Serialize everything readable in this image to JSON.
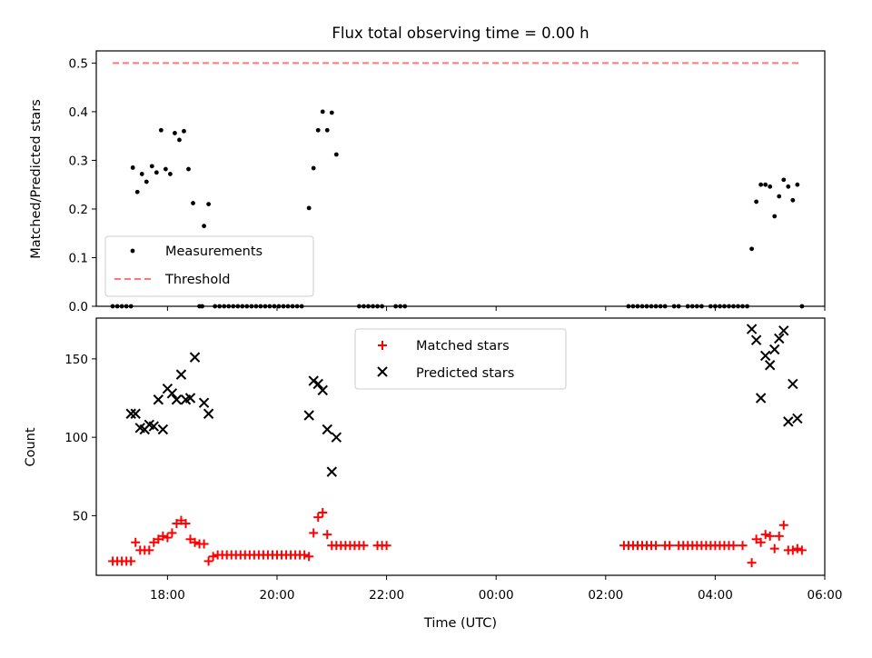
{
  "chart_data": [
    {
      "type": "scatter",
      "title": "Flux total observing time = 0.00 h",
      "ylabel": "Matched/Predicted stars",
      "xlabel": "",
      "x_axis": "time (hours since the day of the plot start, UTC)",
      "ylim": [
        0,
        0.525
      ],
      "yticks": [
        0.0,
        0.1,
        0.2,
        0.3,
        0.4,
        0.5
      ],
      "ytick_labels": [
        "0.0",
        "0.1",
        "0.2",
        "0.3",
        "0.4",
        "0.5"
      ],
      "legend": {
        "placement": "lower-left",
        "entries": [
          "Measurements",
          "Threshold"
        ]
      },
      "series": [
        {
          "name": "Measurements",
          "color": "#000000",
          "marker": "dot",
          "points": [
            [
              "17:22",
              0.285
            ],
            [
              "17:27",
              0.235
            ],
            [
              "17:32",
              0.272
            ],
            [
              "17:37",
              0.256
            ],
            [
              "17:43",
              0.288
            ],
            [
              "17:48",
              0.275
            ],
            [
              "17:53",
              0.362
            ],
            [
              "17:58",
              0.282
            ],
            [
              "18:03",
              0.272
            ],
            [
              "18:08",
              0.356
            ],
            [
              "18:13",
              0.342
            ],
            [
              "18:18",
              0.36
            ],
            [
              "18:23",
              0.282
            ],
            [
              "18:28",
              0.212
            ],
            [
              "18:40",
              0.165
            ],
            [
              "18:45",
              0.21
            ],
            [
              "20:35",
              0.202
            ],
            [
              "20:40",
              0.284
            ],
            [
              "20:45",
              0.362
            ],
            [
              "20:50",
              0.4
            ],
            [
              "20:55",
              0.362
            ],
            [
              "21:00",
              0.398
            ],
            [
              "21:05",
              0.312
            ],
            [
              "04:40",
              0.118
            ],
            [
              "04:45",
              0.215
            ],
            [
              "04:50",
              0.25
            ],
            [
              "04:55",
              0.25
            ],
            [
              "05:00",
              0.246
            ],
            [
              "05:05",
              0.185
            ],
            [
              "05:10",
              0.226
            ],
            [
              "05:15",
              0.26
            ],
            [
              "05:20",
              0.246
            ],
            [
              "05:25",
              0.218
            ],
            [
              "05:30",
              0.25
            ]
          ],
          "zero_points": [
            "17:00",
            "17:05",
            "17:10",
            "17:15",
            "17:20",
            "18:35",
            "18:38",
            "18:52",
            "18:57",
            "19:02",
            "19:07",
            "19:12",
            "19:17",
            "19:22",
            "19:27",
            "19:32",
            "19:37",
            "19:42",
            "19:47",
            "19:52",
            "19:57",
            "20:02",
            "20:07",
            "20:12",
            "20:17",
            "20:22",
            "20:27",
            "21:30",
            "21:35",
            "21:40",
            "21:45",
            "21:50",
            "21:55",
            "22:10",
            "22:15",
            "22:20",
            "02:25",
            "02:30",
            "02:35",
            "02:40",
            "02:45",
            "02:50",
            "02:55",
            "03:00",
            "03:05",
            "03:15",
            "03:20",
            "03:30",
            "03:35",
            "03:40",
            "03:45",
            "03:55",
            "04:00",
            "04:05",
            "04:10",
            "04:15",
            "04:20",
            "04:25",
            "04:30",
            "04:35",
            "05:35"
          ]
        },
        {
          "name": "Threshold",
          "color": "#ff7777",
          "style": "dashed",
          "x": [
            "17:00",
            "05:35"
          ],
          "y": [
            0.5,
            0.5
          ]
        }
      ]
    },
    {
      "type": "scatter",
      "title": "",
      "ylabel": "Count",
      "xlabel": "Time (UTC)",
      "ylim": [
        12,
        176
      ],
      "yticks": [
        50,
        100,
        150
      ],
      "ytick_labels": [
        "50",
        "100",
        "150"
      ],
      "xticks": [
        "18:00",
        "20:00",
        "22:00",
        "00:00",
        "02:00",
        "04:00",
        "06:00"
      ],
      "xlim": [
        "16:42",
        "06:00"
      ],
      "legend": {
        "placement": "top-center",
        "entries": [
          "Matched stars",
          "Predicted stars"
        ]
      },
      "series": [
        {
          "name": "Matched stars",
          "color": "#ff0000",
          "marker": "plus",
          "points": [
            [
              "17:00",
              21
            ],
            [
              "17:05",
              21
            ],
            [
              "17:10",
              21
            ],
            [
              "17:15",
              21
            ],
            [
              "17:20",
              21
            ],
            [
              "17:25",
              33
            ],
            [
              "17:30",
              28
            ],
            [
              "17:35",
              28
            ],
            [
              "17:40",
              28
            ],
            [
              "17:45",
              33
            ],
            [
              "17:50",
              35
            ],
            [
              "17:55",
              37
            ],
            [
              "18:00",
              36
            ],
            [
              "18:05",
              39
            ],
            [
              "18:10",
              45
            ],
            [
              "18:15",
              47
            ],
            [
              "18:20",
              45
            ],
            [
              "18:25",
              35
            ],
            [
              "18:30",
              33
            ],
            [
              "18:35",
              32
            ],
            [
              "18:40",
              32
            ],
            [
              "18:45",
              21
            ],
            [
              "18:50",
              24
            ],
            [
              "18:55",
              25
            ],
            [
              "19:00",
              25
            ],
            [
              "19:05",
              25
            ],
            [
              "19:10",
              25
            ],
            [
              "19:15",
              25
            ],
            [
              "19:20",
              25
            ],
            [
              "19:25",
              25
            ],
            [
              "19:30",
              25
            ],
            [
              "19:35",
              25
            ],
            [
              "19:40",
              25
            ],
            [
              "19:45",
              25
            ],
            [
              "19:50",
              25
            ],
            [
              "19:55",
              25
            ],
            [
              "20:00",
              25
            ],
            [
              "20:05",
              25
            ],
            [
              "20:10",
              25
            ],
            [
              "20:15",
              25
            ],
            [
              "20:20",
              25
            ],
            [
              "20:25",
              25
            ],
            [
              "20:30",
              25
            ],
            [
              "20:35",
              24
            ],
            [
              "20:40",
              39
            ],
            [
              "20:45",
              49
            ],
            [
              "20:50",
              52
            ],
            [
              "20:55",
              38
            ],
            [
              "21:00",
              31
            ],
            [
              "21:05",
              31
            ],
            [
              "21:10",
              31
            ],
            [
              "21:15",
              31
            ],
            [
              "21:20",
              31
            ],
            [
              "21:25",
              31
            ],
            [
              "21:30",
              31
            ],
            [
              "21:35",
              31
            ],
            [
              "21:50",
              31
            ],
            [
              "21:55",
              31
            ],
            [
              "22:00",
              31
            ],
            [
              "02:20",
              31
            ],
            [
              "02:25",
              31
            ],
            [
              "02:30",
              31
            ],
            [
              "02:35",
              31
            ],
            [
              "02:40",
              31
            ],
            [
              "02:45",
              31
            ],
            [
              "02:50",
              31
            ],
            [
              "02:55",
              31
            ],
            [
              "03:05",
              31
            ],
            [
              "03:10",
              31
            ],
            [
              "03:20",
              31
            ],
            [
              "03:25",
              31
            ],
            [
              "03:30",
              31
            ],
            [
              "03:35",
              31
            ],
            [
              "03:40",
              31
            ],
            [
              "03:45",
              31
            ],
            [
              "03:50",
              31
            ],
            [
              "03:55",
              31
            ],
            [
              "04:00",
              31
            ],
            [
              "04:05",
              31
            ],
            [
              "04:10",
              31
            ],
            [
              "04:15",
              31
            ],
            [
              "04:20",
              31
            ],
            [
              "04:30",
              31
            ],
            [
              "04:40",
              20
            ],
            [
              "04:45",
              35
            ],
            [
              "04:50",
              33
            ],
            [
              "04:55",
              38
            ],
            [
              "05:00",
              37
            ],
            [
              "05:05",
              29
            ],
            [
              "05:10",
              37
            ],
            [
              "05:15",
              44
            ],
            [
              "05:20",
              28
            ],
            [
              "05:25",
              28
            ],
            [
              "05:30",
              29
            ],
            [
              "05:35",
              28
            ]
          ]
        },
        {
          "name": "Predicted stars",
          "color": "#000000",
          "marker": "cross",
          "points": [
            [
              "17:20",
              115
            ],
            [
              "17:25",
              115
            ],
            [
              "17:30",
              106
            ],
            [
              "17:35",
              105
            ],
            [
              "17:40",
              108
            ],
            [
              "17:45",
              107
            ],
            [
              "17:50",
              124
            ],
            [
              "17:55",
              105
            ],
            [
              "18:00",
              131
            ],
            [
              "18:05",
              128
            ],
            [
              "18:10",
              124
            ],
            [
              "18:15",
              140
            ],
            [
              "18:20",
              124
            ],
            [
              "18:25",
              125
            ],
            [
              "18:30",
              151
            ],
            [
              "18:40",
              122
            ],
            [
              "18:45",
              115
            ],
            [
              "20:35",
              114
            ],
            [
              "20:40",
              136
            ],
            [
              "20:45",
              134
            ],
            [
              "20:50",
              130
            ],
            [
              "20:55",
              105
            ],
            [
              "21:00",
              78
            ],
            [
              "21:05",
              100
            ],
            [
              "04:40",
              169
            ],
            [
              "04:45",
              162
            ],
            [
              "04:50",
              125
            ],
            [
              "04:55",
              152
            ],
            [
              "05:00",
              146
            ],
            [
              "05:05",
              156
            ],
            [
              "05:10",
              163
            ],
            [
              "05:15",
              168
            ],
            [
              "05:20",
              110
            ],
            [
              "05:25",
              134
            ],
            [
              "05:30",
              112
            ]
          ]
        }
      ]
    }
  ]
}
